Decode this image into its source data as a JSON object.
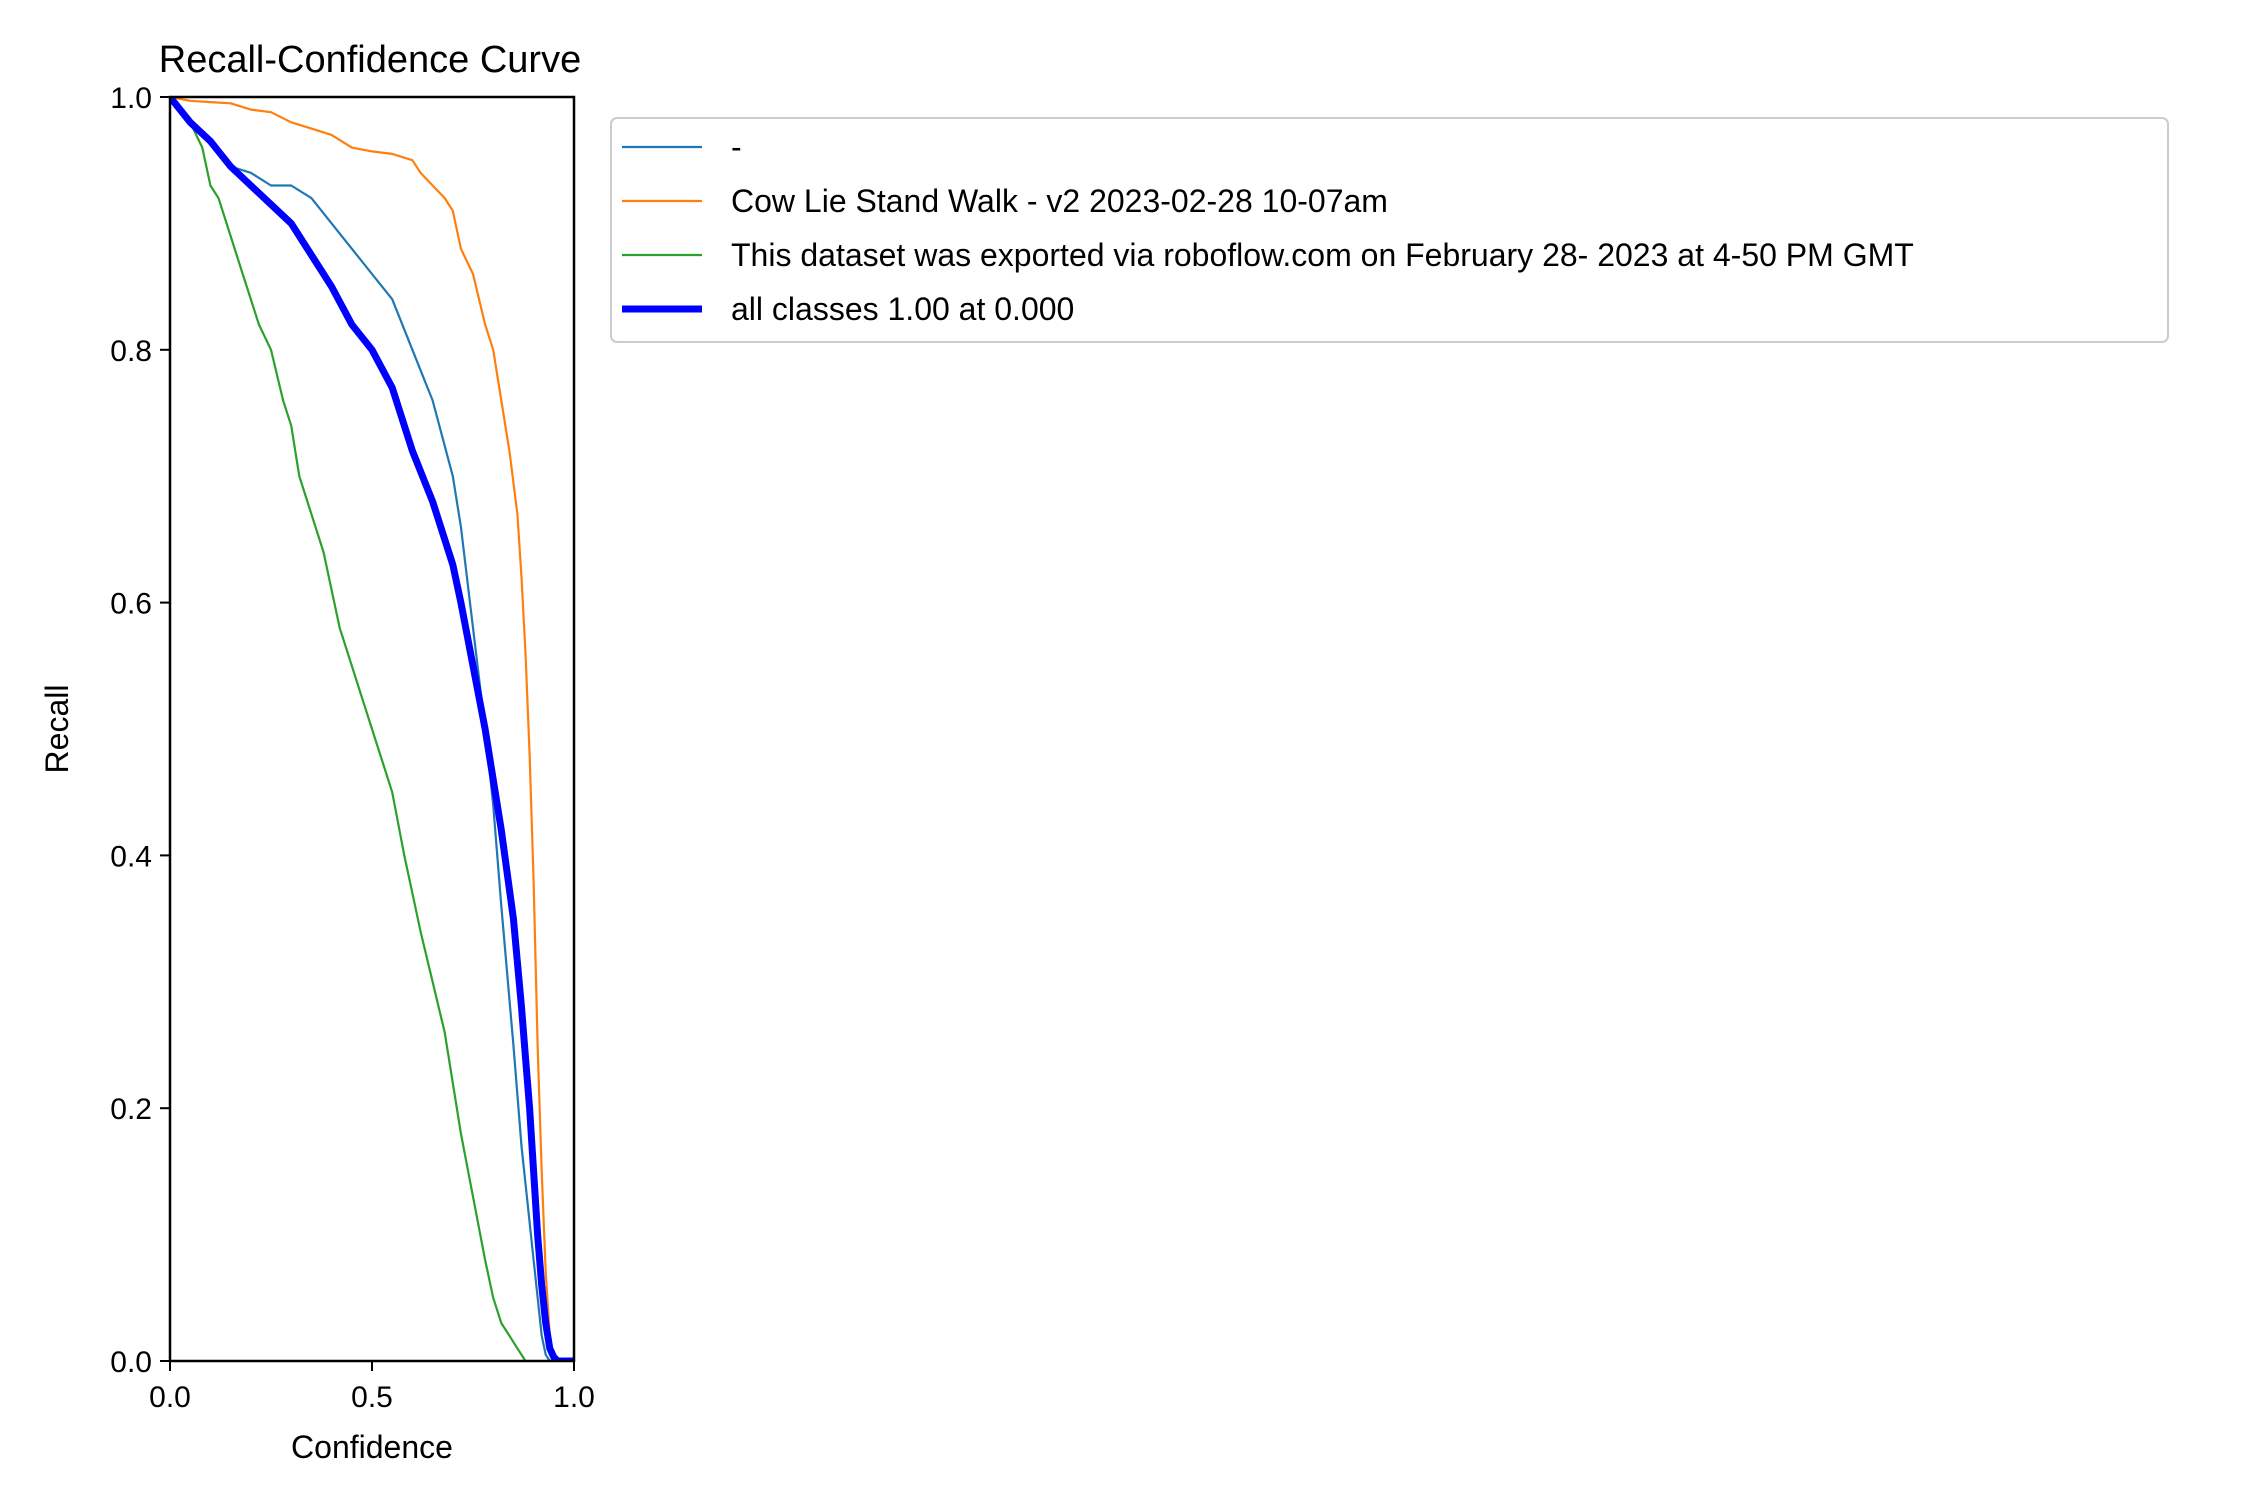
{
  "chart_data": {
    "type": "line",
    "title": "Recall-Confidence Curve",
    "xlabel": "Confidence",
    "ylabel": "Recall",
    "xlim": [
      0,
      1
    ],
    "ylim": [
      0,
      1
    ],
    "xticks": [
      0.0,
      0.5,
      1.0
    ],
    "xtick_labels": [
      "0.0",
      "0.5",
      "1.0"
    ],
    "yticks": [
      0.0,
      0.2,
      0.4,
      0.6,
      0.8,
      1.0
    ],
    "ytick_labels": [
      "0.0",
      "0.2",
      "0.4",
      "0.6",
      "0.8",
      "1.0"
    ],
    "grid": false,
    "legend_position": "upper-right-outside",
    "series": [
      {
        "name": "-",
        "color": "#1f77b4",
        "width": "thin",
        "x": [
          0.0,
          0.05,
          0.1,
          0.15,
          0.2,
          0.25,
          0.3,
          0.35,
          0.4,
          0.45,
          0.5,
          0.55,
          0.6,
          0.65,
          0.7,
          0.72,
          0.75,
          0.78,
          0.8,
          0.82,
          0.85,
          0.87,
          0.9,
          0.92,
          0.93,
          0.94,
          0.95
        ],
        "y": [
          1.0,
          0.98,
          0.965,
          0.945,
          0.94,
          0.93,
          0.93,
          0.92,
          0.9,
          0.88,
          0.86,
          0.84,
          0.8,
          0.76,
          0.7,
          0.66,
          0.58,
          0.5,
          0.44,
          0.36,
          0.25,
          0.17,
          0.08,
          0.02,
          0.005,
          0.0,
          0.0
        ]
      },
      {
        "name": "Cow Lie Stand Walk - v2 2023-02-28 10-07am",
        "color": "#ff7f0e",
        "width": "thin",
        "x": [
          0.0,
          0.05,
          0.1,
          0.15,
          0.2,
          0.25,
          0.3,
          0.35,
          0.4,
          0.45,
          0.5,
          0.55,
          0.6,
          0.62,
          0.65,
          0.68,
          0.7,
          0.72,
          0.75,
          0.78,
          0.8,
          0.82,
          0.84,
          0.86,
          0.87,
          0.88,
          0.89,
          0.9,
          0.91,
          0.92,
          0.93,
          0.94,
          0.95
        ],
        "y": [
          1.0,
          0.997,
          0.996,
          0.995,
          0.99,
          0.988,
          0.98,
          0.975,
          0.97,
          0.96,
          0.957,
          0.955,
          0.95,
          0.94,
          0.93,
          0.92,
          0.91,
          0.88,
          0.86,
          0.82,
          0.8,
          0.76,
          0.72,
          0.67,
          0.62,
          0.56,
          0.48,
          0.38,
          0.25,
          0.15,
          0.07,
          0.02,
          0.0
        ]
      },
      {
        "name": "This dataset was exported via roboflow.com on February 28- 2023 at 4-50 PM GMT",
        "color": "#2ca02c",
        "width": "thin",
        "x": [
          0.0,
          0.02,
          0.05,
          0.08,
          0.1,
          0.12,
          0.15,
          0.18,
          0.2,
          0.22,
          0.25,
          0.28,
          0.3,
          0.32,
          0.35,
          0.38,
          0.4,
          0.42,
          0.45,
          0.48,
          0.5,
          0.52,
          0.55,
          0.58,
          0.6,
          0.62,
          0.65,
          0.68,
          0.7,
          0.72,
          0.75,
          0.78,
          0.8,
          0.82,
          0.84,
          0.86,
          0.87,
          0.88
        ],
        "y": [
          1.0,
          0.99,
          0.98,
          0.96,
          0.93,
          0.92,
          0.89,
          0.86,
          0.84,
          0.82,
          0.8,
          0.76,
          0.74,
          0.7,
          0.67,
          0.64,
          0.61,
          0.58,
          0.55,
          0.52,
          0.5,
          0.48,
          0.45,
          0.4,
          0.37,
          0.34,
          0.3,
          0.26,
          0.22,
          0.18,
          0.13,
          0.08,
          0.05,
          0.03,
          0.02,
          0.01,
          0.005,
          0.0
        ]
      },
      {
        "name": "all classes 1.00 at 0.000",
        "color": "#0000ff",
        "width": "thick",
        "x": [
          0.0,
          0.05,
          0.1,
          0.15,
          0.2,
          0.25,
          0.3,
          0.35,
          0.4,
          0.45,
          0.5,
          0.55,
          0.6,
          0.65,
          0.7,
          0.72,
          0.75,
          0.78,
          0.8,
          0.82,
          0.85,
          0.87,
          0.88,
          0.89,
          0.9,
          0.91,
          0.92,
          0.93,
          0.94,
          0.95,
          0.96,
          0.97,
          1.0
        ],
        "y": [
          1.0,
          0.98,
          0.965,
          0.945,
          0.93,
          0.915,
          0.9,
          0.875,
          0.85,
          0.82,
          0.8,
          0.77,
          0.72,
          0.68,
          0.63,
          0.6,
          0.55,
          0.5,
          0.46,
          0.42,
          0.35,
          0.28,
          0.24,
          0.2,
          0.15,
          0.1,
          0.06,
          0.03,
          0.01,
          0.003,
          0.0,
          0.0,
          0.0
        ]
      }
    ]
  }
}
